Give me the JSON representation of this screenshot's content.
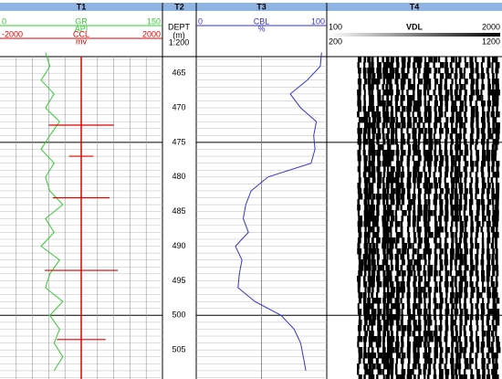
{
  "chart_data": {
    "type": "well-log",
    "tracks": [
      "T1",
      "T2",
      "T3",
      "T4"
    ],
    "depth_label": "DEPT",
    "depth_unit": "(m)",
    "depth_scale": "1:200",
    "ylim": [
      462.6,
      509.2
    ],
    "yticks": [
      465,
      470,
      475,
      480,
      485,
      490,
      495,
      500,
      505
    ],
    "depth": [
      462,
      464,
      466,
      468,
      470,
      472,
      474,
      476,
      478,
      480,
      482,
      484,
      486,
      488,
      490,
      492,
      494,
      496,
      498,
      500,
      502,
      504,
      506,
      508
    ],
    "series": [
      {
        "name": "GR",
        "unit": "API",
        "color": "#33cc33",
        "xlim": [
          0,
          150
        ],
        "values": [
          42,
          46,
          38,
          50,
          42,
          55,
          46,
          38,
          50,
          42,
          46,
          58,
          42,
          50,
          38,
          55,
          46,
          42,
          58,
          46,
          55,
          50,
          58,
          50
        ]
      },
      {
        "name": "CCL",
        "unit": "mv",
        "color": "#dd0000",
        "xlim": [
          -2000,
          2000
        ],
        "spike_depths": [
          472.5,
          477,
          483,
          493.5,
          503.5
        ],
        "spike_values": [
          800,
          300,
          700,
          900,
          600
        ]
      },
      {
        "name": "CBL",
        "unit": "%",
        "color": "#3333cc",
        "xlim": [
          0,
          100
        ],
        "values": [
          96,
          95,
          85,
          72,
          80,
          92,
          90,
          91,
          88,
          55,
          42,
          38,
          36,
          40,
          30,
          35,
          33,
          32,
          45,
          65,
          75,
          80,
          82,
          84
        ]
      },
      {
        "name": "VDL",
        "color": "#000000",
        "xlim": [
          100,
          2000
        ],
        "xlim2": [
          200,
          1200
        ]
      }
    ]
  }
}
